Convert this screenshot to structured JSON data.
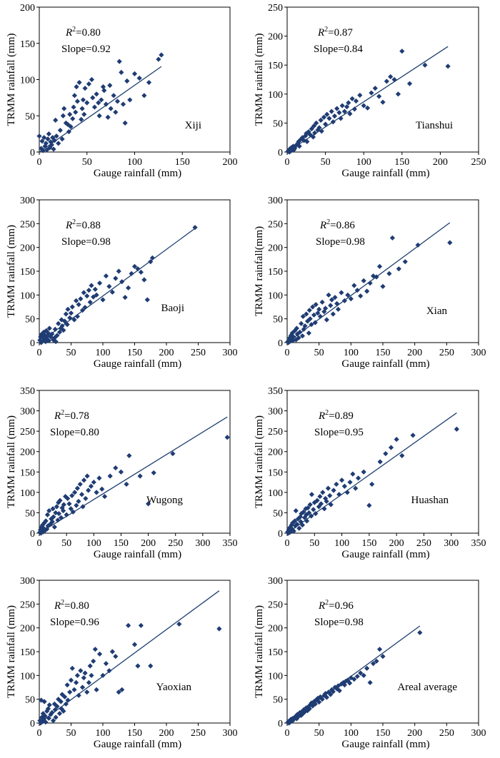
{
  "figure": {
    "xlabel": "Gauge rainfall (mm)",
    "r2_prefix": "R",
    "r2_sup": "2",
    "r2_suffix": "=",
    "slope_prefix": "Slope="
  },
  "chart_data": [
    {
      "type": "scatter",
      "site": "Xiji",
      "ylabel": "TRMM rainfall (mm)",
      "r2": "0.80",
      "slope": "0.92",
      "xlim": [
        0,
        200
      ],
      "ylim": [
        0,
        200
      ],
      "xticks": [
        0,
        50,
        100,
        150,
        200
      ],
      "yticks": [
        0,
        50,
        100,
        150,
        200
      ],
      "fit": [
        [
          0,
          0
        ],
        [
          128,
          118
        ]
      ],
      "x": [
        0,
        2,
        3,
        4,
        5,
        6,
        7,
        8,
        9,
        10,
        11,
        12,
        13,
        14,
        15,
        16,
        17,
        18,
        20,
        22,
        24,
        25,
        26,
        28,
        30,
        31,
        32,
        33,
        35,
        36,
        37,
        38,
        39,
        40,
        42,
        44,
        45,
        46,
        47,
        48,
        50,
        52,
        55,
        56,
        58,
        60,
        62,
        63,
        65,
        67,
        68,
        70,
        72,
        74,
        75,
        78,
        80,
        82,
        84,
        86,
        88,
        90,
        92,
        95,
        100,
        105,
        110,
        115,
        125,
        128
      ],
      "y": [
        22,
        5,
        15,
        2,
        20,
        8,
        12,
        3,
        18,
        25,
        6,
        14,
        10,
        20,
        4,
        16,
        44,
        22,
        12,
        30,
        18,
        50,
        60,
        40,
        38,
        28,
        52,
        35,
        46,
        62,
        78,
        55,
        90,
        70,
        96,
        45,
        60,
        72,
        52,
        88,
        68,
        94,
        100,
        75,
        62,
        80,
        68,
        50,
        72,
        90,
        85,
        66,
        48,
        92,
        60,
        78,
        55,
        70,
        125,
        110,
        66,
        40,
        98,
        72,
        108,
        102,
        78,
        96,
        128,
        134
      ]
    },
    {
      "type": "scatter",
      "site": "Tianshui",
      "ylabel": "TRMM rainfall (mm)",
      "r2": "0.87",
      "slope": "0.84",
      "xlim": [
        0,
        250
      ],
      "ylim": [
        0,
        250
      ],
      "xticks": [
        0,
        50,
        100,
        150,
        200,
        250
      ],
      "yticks": [
        0,
        50,
        100,
        150,
        200,
        250
      ],
      "fit": [
        [
          0,
          0
        ],
        [
          210,
          182
        ]
      ],
      "x": [
        1,
        2,
        3,
        4,
        5,
        6,
        7,
        8,
        9,
        10,
        12,
        14,
        15,
        16,
        18,
        20,
        22,
        24,
        25,
        26,
        28,
        30,
        32,
        34,
        35,
        36,
        38,
        40,
        42,
        44,
        45,
        48,
        50,
        52,
        55,
        58,
        60,
        62,
        65,
        68,
        70,
        72,
        75,
        78,
        80,
        82,
        85,
        88,
        90,
        95,
        100,
        105,
        110,
        115,
        120,
        125,
        130,
        135,
        140,
        145,
        150,
        160,
        180,
        210
      ],
      "y": [
        1,
        3,
        0,
        6,
        2,
        8,
        5,
        10,
        4,
        7,
        12,
        15,
        18,
        10,
        22,
        25,
        20,
        28,
        32,
        18,
        35,
        30,
        40,
        26,
        45,
        33,
        50,
        38,
        42,
        55,
        36,
        60,
        48,
        65,
        58,
        70,
        52,
        62,
        75,
        68,
        58,
        80,
        70,
        78,
        85,
        66,
        92,
        74,
        88,
        98,
        80,
        76,
        102,
        110,
        96,
        86,
        122,
        130,
        125,
        100,
        174,
        118,
        150,
        148
      ]
    },
    {
      "type": "scatter",
      "site": "Baoji",
      "ylabel": "TRMM rainfall (mm)",
      "r2": "0.88",
      "slope": "0.98",
      "xlim": [
        0,
        300
      ],
      "ylim": [
        0,
        300
      ],
      "xticks": [
        0,
        50,
        100,
        150,
        200,
        250,
        300
      ],
      "yticks": [
        0,
        50,
        100,
        150,
        200,
        250,
        300
      ],
      "fit": [
        [
          0,
          0
        ],
        [
          245,
          240
        ]
      ],
      "x": [
        1,
        2,
        3,
        4,
        5,
        6,
        7,
        8,
        9,
        10,
        11,
        12,
        13,
        14,
        15,
        16,
        18,
        20,
        22,
        24,
        25,
        26,
        28,
        30,
        32,
        34,
        35,
        36,
        38,
        40,
        42,
        44,
        45,
        48,
        50,
        52,
        55,
        58,
        60,
        62,
        65,
        68,
        70,
        72,
        75,
        78,
        80,
        82,
        85,
        88,
        90,
        95,
        100,
        105,
        110,
        115,
        120,
        125,
        130,
        135,
        140,
        145,
        150,
        155,
        160,
        165,
        170,
        175,
        178,
        245
      ],
      "y": [
        5,
        12,
        0,
        18,
        3,
        10,
        22,
        6,
        15,
        2,
        25,
        8,
        14,
        20,
        4,
        30,
        12,
        18,
        6,
        10,
        28,
        2,
        15,
        40,
        22,
        30,
        48,
        35,
        26,
        45,
        60,
        38,
        70,
        52,
        62,
        75,
        48,
        88,
        55,
        80,
        92,
        68,
        105,
        74,
        98,
        110,
        85,
        120,
        96,
        112,
        100,
        125,
        90,
        140,
        118,
        106,
        135,
        150,
        128,
        95,
        115,
        145,
        160,
        155,
        148,
        132,
        90,
        170,
        178,
        242
      ]
    },
    {
      "type": "scatter",
      "site": "Xian",
      "ylabel": "TRMM rainfall(mm)",
      "r2": "0.86",
      "slope": "0.98",
      "xlim": [
        0,
        300
      ],
      "ylim": [
        0,
        300
      ],
      "xticks": [
        0,
        50,
        100,
        150,
        200,
        250,
        300
      ],
      "yticks": [
        0,
        50,
        100,
        150,
        200,
        250,
        300
      ],
      "fit": [
        [
          0,
          0
        ],
        [
          255,
          252
        ]
      ],
      "x": [
        1,
        2,
        3,
        4,
        5,
        6,
        7,
        8,
        9,
        10,
        12,
        14,
        15,
        16,
        18,
        20,
        22,
        24,
        25,
        26,
        28,
        30,
        32,
        34,
        35,
        36,
        38,
        40,
        42,
        44,
        45,
        48,
        50,
        52,
        55,
        58,
        60,
        62,
        65,
        68,
        70,
        72,
        75,
        78,
        80,
        85,
        90,
        95,
        100,
        105,
        110,
        115,
        120,
        125,
        130,
        135,
        140,
        145,
        150,
        160,
        165,
        175,
        185,
        205,
        255
      ],
      "y": [
        2,
        0,
        5,
        10,
        3,
        15,
        8,
        20,
        4,
        12,
        25,
        6,
        30,
        18,
        10,
        22,
        40,
        14,
        55,
        28,
        35,
        60,
        45,
        20,
        68,
        50,
        38,
        75,
        58,
        42,
        80,
        62,
        70,
        55,
        85,
        65,
        72,
        48,
        100,
        78,
        90,
        60,
        95,
        82,
        70,
        105,
        88,
        100,
        92,
        120,
        110,
        98,
        130,
        108,
        125,
        140,
        138,
        160,
        118,
        145,
        220,
        155,
        170,
        205,
        210
      ]
    },
    {
      "type": "scatter",
      "site": "Wugong",
      "ylabel": "TRMM rainfall (mm)",
      "r2": "0.78",
      "slope": "0.80",
      "xlim": [
        0,
        350
      ],
      "ylim": [
        0,
        350
      ],
      "xticks": [
        0,
        50,
        100,
        150,
        200,
        250,
        300,
        350
      ],
      "yticks": [
        0,
        50,
        100,
        150,
        200,
        250,
        300,
        350
      ],
      "fit": [
        [
          0,
          0
        ],
        [
          345,
          285
        ]
      ],
      "x": [
        1,
        2,
        3,
        4,
        5,
        6,
        7,
        8,
        9,
        10,
        12,
        14,
        15,
        16,
        18,
        20,
        22,
        24,
        25,
        26,
        28,
        30,
        32,
        34,
        35,
        36,
        38,
        40,
        42,
        44,
        45,
        48,
        50,
        52,
        55,
        58,
        60,
        62,
        65,
        68,
        70,
        72,
        75,
        78,
        80,
        82,
        85,
        88,
        90,
        95,
        100,
        105,
        110,
        115,
        120,
        130,
        140,
        150,
        160,
        165,
        185,
        200,
        210,
        245,
        345
      ],
      "y": [
        2,
        8,
        0,
        15,
        5,
        20,
        3,
        12,
        25,
        6,
        30,
        10,
        45,
        18,
        55,
        22,
        35,
        28,
        60,
        40,
        15,
        50,
        65,
        32,
        75,
        48,
        80,
        38,
        62,
        55,
        70,
        90,
        45,
        85,
        72,
        60,
        92,
        52,
        100,
        68,
        110,
        78,
        120,
        95,
        65,
        130,
        85,
        140,
        105,
        115,
        125,
        100,
        135,
        108,
        90,
        140,
        160,
        150,
        120,
        190,
        140,
        72,
        148,
        195,
        235
      ]
    },
    {
      "type": "scatter",
      "site": "Huashan",
      "ylabel": "TRMM rainfall (mm)",
      "r2": "0.89",
      "slope": "0.95",
      "xlim": [
        0,
        350
      ],
      "ylim": [
        0,
        350
      ],
      "xticks": [
        0,
        50,
        100,
        150,
        200,
        250,
        300,
        350
      ],
      "yticks": [
        0,
        50,
        100,
        150,
        200,
        250,
        300,
        350
      ],
      "fit": [
        [
          0,
          0
        ],
        [
          310,
          295
        ]
      ],
      "x": [
        1,
        2,
        3,
        4,
        5,
        6,
        7,
        8,
        9,
        10,
        12,
        14,
        15,
        16,
        18,
        20,
        22,
        24,
        25,
        26,
        28,
        30,
        32,
        34,
        35,
        36,
        38,
        40,
        42,
        44,
        45,
        48,
        50,
        52,
        55,
        58,
        60,
        62,
        65,
        68,
        70,
        72,
        75,
        78,
        80,
        85,
        90,
        95,
        100,
        105,
        110,
        115,
        120,
        125,
        130,
        140,
        150,
        155,
        170,
        180,
        190,
        200,
        210,
        230,
        310
      ],
      "y": [
        3,
        0,
        8,
        12,
        2,
        15,
        6,
        20,
        10,
        25,
        5,
        30,
        18,
        55,
        22,
        35,
        12,
        40,
        28,
        48,
        20,
        52,
        38,
        60,
        45,
        30,
        62,
        50,
        70,
        42,
        95,
        58,
        75,
        48,
        80,
        65,
        90,
        72,
        100,
        60,
        85,
        78,
        110,
        92,
        70,
        105,
        120,
        95,
        130,
        115,
        100,
        125,
        145,
        110,
        135,
        150,
        68,
        120,
        175,
        195,
        210,
        230,
        190,
        240,
        255
      ]
    },
    {
      "type": "scatter",
      "site": "Yaoxian",
      "ylabel": "TRMM rainfall (mm)",
      "r2": "0.80",
      "slope": "0.96",
      "xlim": [
        0,
        300
      ],
      "ylim": [
        0,
        300
      ],
      "xticks": [
        0,
        50,
        100,
        150,
        200,
        250,
        300
      ],
      "yticks": [
        0,
        50,
        100,
        150,
        200,
        250,
        300
      ],
      "fit": [
        [
          0,
          0
        ],
        [
          283,
          278
        ]
      ],
      "x": [
        1,
        2,
        3,
        4,
        5,
        6,
        7,
        8,
        9,
        10,
        12,
        14,
        15,
        16,
        18,
        20,
        22,
        24,
        25,
        26,
        28,
        30,
        32,
        34,
        35,
        36,
        38,
        40,
        42,
        44,
        45,
        48,
        50,
        52,
        55,
        58,
        60,
        62,
        65,
        68,
        70,
        72,
        75,
        78,
        80,
        82,
        85,
        88,
        90,
        95,
        100,
        105,
        110,
        115,
        120,
        125,
        130,
        140,
        150,
        155,
        160,
        175,
        220,
        283
      ],
      "y": [
        5,
        0,
        48,
        12,
        3,
        20,
        8,
        45,
        15,
        2,
        25,
        30,
        10,
        38,
        18,
        22,
        5,
        40,
        28,
        12,
        35,
        50,
        20,
        45,
        30,
        60,
        25,
        55,
        40,
        80,
        48,
        65,
        90,
        115,
        70,
        85,
        100,
        58,
        110,
        75,
        95,
        105,
        65,
        85,
        120,
        100,
        130,
        155,
        70,
        145,
        100,
        125,
        110,
        150,
        140,
        65,
        70,
        205,
        165,
        120,
        205,
        120,
        208,
        198
      ]
    },
    {
      "type": "scatter",
      "site": "Areal average",
      "ylabel": "TRMM rainfall (mm)",
      "r2": "0.96",
      "slope": "0.98",
      "xlim": [
        0,
        300
      ],
      "ylim": [
        0,
        300
      ],
      "xticks": [
        0,
        50,
        100,
        150,
        200,
        250,
        300
      ],
      "yticks": [
        0,
        50,
        100,
        150,
        200,
        250,
        300
      ],
      "fit": [
        [
          0,
          0
        ],
        [
          208,
          204
        ]
      ],
      "x": [
        1,
        2,
        3,
        4,
        5,
        6,
        7,
        8,
        9,
        10,
        12,
        14,
        15,
        16,
        18,
        20,
        22,
        24,
        25,
        26,
        28,
        30,
        32,
        34,
        35,
        36,
        38,
        40,
        42,
        44,
        45,
        48,
        50,
        52,
        55,
        58,
        60,
        62,
        65,
        68,
        70,
        72,
        75,
        78,
        80,
        82,
        85,
        88,
        90,
        92,
        95,
        98,
        100,
        105,
        110,
        115,
        120,
        125,
        130,
        135,
        140,
        145,
        150,
        208
      ],
      "y": [
        1,
        3,
        0,
        5,
        2,
        8,
        6,
        4,
        10,
        7,
        12,
        15,
        9,
        18,
        14,
        22,
        16,
        25,
        20,
        28,
        24,
        32,
        26,
        35,
        30,
        38,
        42,
        36,
        45,
        40,
        48,
        52,
        44,
        55,
        50,
        58,
        62,
        54,
        65,
        60,
        70,
        66,
        75,
        72,
        78,
        68,
        82,
        85,
        80,
        88,
        90,
        84,
        95,
        92,
        98,
        105,
        100,
        115,
        85,
        125,
        130,
        155,
        140,
        190
      ]
    }
  ]
}
